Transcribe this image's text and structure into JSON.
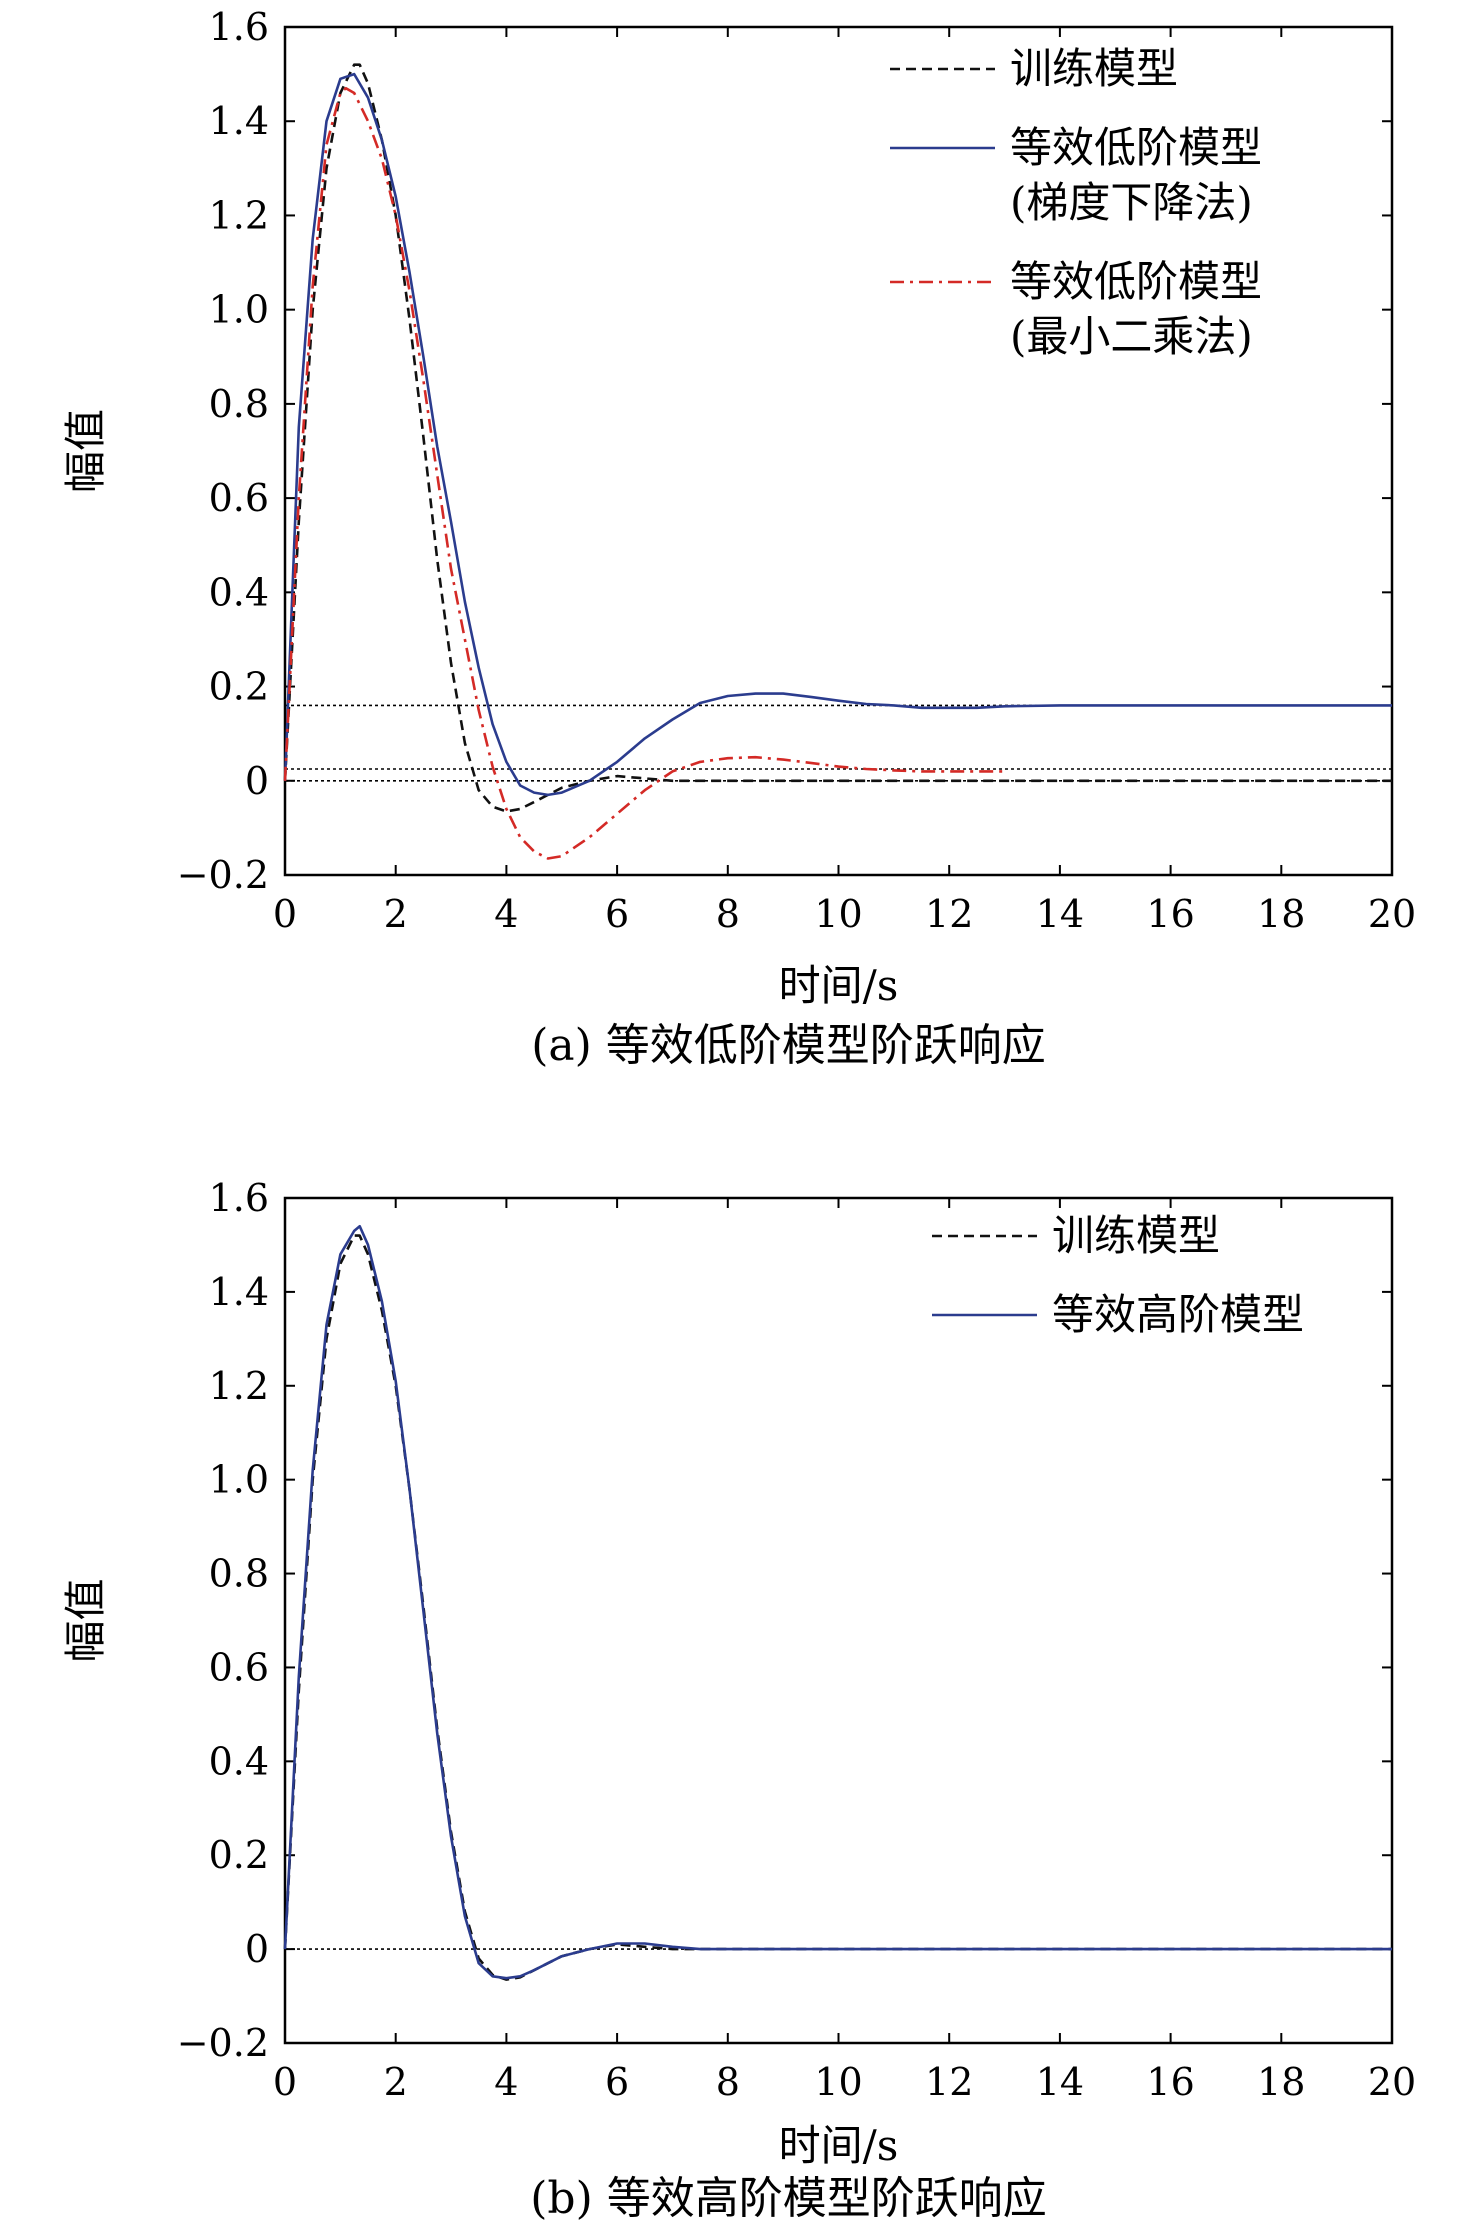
{
  "chart_data": [
    {
      "type": "line",
      "caption": "(a) 等效低阶模型阶跃响应",
      "xlabel": "时间/s",
      "ylabel": "幅值",
      "xlim": [
        0,
        20
      ],
      "ylim": [
        -0.2,
        1.6
      ],
      "xticks": [
        "0",
        "2",
        "4",
        "6",
        "8",
        "10",
        "12",
        "14",
        "16",
        "18",
        "20"
      ],
      "yticks": [
        "−0.2",
        "0",
        "0.2",
        "0.4",
        "0.6",
        "0.8",
        "1.0",
        "1.2",
        "1.4",
        "1.6"
      ],
      "grid": false,
      "legend_position": "top-right",
      "reference_lines": [
        0,
        0.16,
        0.025
      ],
      "series": [
        {
          "name": "训练模型",
          "color": "#111111",
          "style": "dashed",
          "x": [
            0,
            0.25,
            0.5,
            0.75,
            1.0,
            1.25,
            1.35,
            1.5,
            1.75,
            2.0,
            2.25,
            2.5,
            2.75,
            3.0,
            3.25,
            3.5,
            3.75,
            4.0,
            4.25,
            4.5,
            4.75,
            5.0,
            5.5,
            6.0,
            6.5,
            7.0,
            7.5,
            8.0,
            10.0,
            12.0,
            14.0,
            16.0,
            18.0,
            20.0
          ],
          "y": [
            0,
            0.55,
            1.0,
            1.3,
            1.46,
            1.52,
            1.52,
            1.48,
            1.36,
            1.2,
            0.98,
            0.73,
            0.47,
            0.25,
            0.08,
            -0.02,
            -0.055,
            -0.065,
            -0.06,
            -0.045,
            -0.03,
            -0.015,
            0.0,
            0.01,
            0.005,
            0.0,
            0.0,
            0.0,
            0.0,
            0.0,
            0.0,
            0.0,
            0.0,
            0.0
          ]
        },
        {
          "name": "等效低阶模型(梯度下降法)",
          "legend_lines": [
            "等效低阶模型",
            "(梯度下降法)"
          ],
          "color": "#2b3c8e",
          "style": "solid",
          "x": [
            0,
            0.25,
            0.5,
            0.75,
            1.0,
            1.25,
            1.5,
            1.75,
            2.0,
            2.25,
            2.5,
            2.75,
            3.0,
            3.25,
            3.5,
            3.75,
            4.0,
            4.25,
            4.5,
            4.75,
            5.0,
            5.5,
            6.0,
            6.5,
            7.0,
            7.5,
            8.0,
            8.5,
            9.0,
            9.5,
            10.0,
            10.5,
            11.0,
            11.5,
            12.0,
            12.5,
            13.0,
            14.0,
            16.0,
            18.0,
            20.0
          ],
          "y": [
            0,
            0.75,
            1.15,
            1.4,
            1.49,
            1.5,
            1.45,
            1.36,
            1.24,
            1.08,
            0.9,
            0.71,
            0.55,
            0.38,
            0.24,
            0.12,
            0.04,
            -0.01,
            -0.025,
            -0.03,
            -0.025,
            0.0,
            0.04,
            0.09,
            0.13,
            0.165,
            0.18,
            0.185,
            0.185,
            0.178,
            0.17,
            0.163,
            0.16,
            0.155,
            0.155,
            0.155,
            0.158,
            0.16,
            0.16,
            0.16,
            0.16
          ]
        },
        {
          "name": "等效低阶模型(最小二乘法)",
          "legend_lines": [
            "等效低阶模型",
            "(最小二乘法)"
          ],
          "color": "#d42a26",
          "style": "dashdot",
          "x": [
            0,
            0.25,
            0.5,
            0.75,
            1.0,
            1.1,
            1.25,
            1.5,
            1.75,
            2.0,
            2.25,
            2.5,
            2.75,
            3.0,
            3.25,
            3.5,
            3.75,
            4.0,
            4.25,
            4.5,
            4.75,
            5.0,
            5.25,
            5.5,
            6.0,
            6.5,
            7.0,
            7.5,
            8.0,
            8.5,
            9.0,
            9.5,
            10.0,
            10.5,
            11.0,
            11.5,
            12.0,
            12.5,
            13.0
          ],
          "y": [
            0,
            0.6,
            1.05,
            1.35,
            1.46,
            1.47,
            1.46,
            1.4,
            1.32,
            1.2,
            1.04,
            0.85,
            0.65,
            0.45,
            0.3,
            0.15,
            0.03,
            -0.06,
            -0.12,
            -0.15,
            -0.165,
            -0.16,
            -0.14,
            -0.12,
            -0.07,
            -0.02,
            0.02,
            0.04,
            0.048,
            0.05,
            0.045,
            0.038,
            0.03,
            0.025,
            0.022,
            0.02,
            0.02,
            0.02,
            0.02
          ]
        }
      ]
    },
    {
      "type": "line",
      "caption": "(b) 等效高阶模型阶跃响应",
      "xlabel": "时间/s",
      "ylabel": "幅值",
      "xlim": [
        0,
        20
      ],
      "ylim": [
        -0.2,
        1.6
      ],
      "xticks": [
        "0",
        "2",
        "4",
        "6",
        "8",
        "10",
        "12",
        "14",
        "16",
        "18",
        "20"
      ],
      "yticks": [
        "−0.2",
        "0",
        "0.2",
        "0.4",
        "0.6",
        "0.8",
        "1.0",
        "1.2",
        "1.4",
        "1.6"
      ],
      "grid": false,
      "legend_position": "top-right",
      "reference_lines": [
        0
      ],
      "series": [
        {
          "name": "训练模型",
          "color": "#111111",
          "style": "dashed",
          "x": [
            0,
            0.25,
            0.5,
            0.75,
            1.0,
            1.25,
            1.35,
            1.5,
            1.75,
            2.0,
            2.25,
            2.5,
            2.75,
            3.0,
            3.25,
            3.5,
            3.75,
            4.0,
            4.25,
            4.5,
            4.75,
            5.0,
            5.5,
            6.0,
            6.5,
            7.0,
            7.5,
            8.0,
            10.0,
            12.0,
            14.0,
            16.0,
            18.0,
            20.0
          ],
          "y": [
            0,
            0.55,
            1.0,
            1.3,
            1.46,
            1.52,
            1.52,
            1.48,
            1.36,
            1.2,
            0.98,
            0.73,
            0.47,
            0.25,
            0.08,
            -0.02,
            -0.055,
            -0.065,
            -0.06,
            -0.045,
            -0.03,
            -0.015,
            0.0,
            0.01,
            0.005,
            0.0,
            0.0,
            0.0,
            0.0,
            0.0,
            0.0,
            0.0,
            0.0,
            0.0
          ]
        },
        {
          "name": "等效高阶模型",
          "color": "#2b3c8e",
          "style": "solid",
          "x": [
            0,
            0.25,
            0.5,
            0.75,
            1.0,
            1.25,
            1.35,
            1.5,
            1.75,
            2.0,
            2.25,
            2.5,
            2.75,
            3.0,
            3.25,
            3.5,
            3.75,
            4.0,
            4.25,
            4.5,
            4.75,
            5.0,
            5.5,
            6.0,
            6.5,
            7.0,
            7.5,
            8.0,
            10.0,
            12.0,
            14.0,
            16.0,
            18.0,
            20.0
          ],
          "y": [
            0,
            0.58,
            1.02,
            1.33,
            1.48,
            1.53,
            1.54,
            1.5,
            1.38,
            1.21,
            0.98,
            0.72,
            0.46,
            0.24,
            0.07,
            -0.03,
            -0.058,
            -0.062,
            -0.058,
            -0.045,
            -0.03,
            -0.015,
            0.0,
            0.012,
            0.012,
            0.005,
            0.0,
            0.0,
            0.0,
            0.0,
            0.0,
            0.0,
            0.0,
            0.0
          ]
        }
      ]
    }
  ]
}
